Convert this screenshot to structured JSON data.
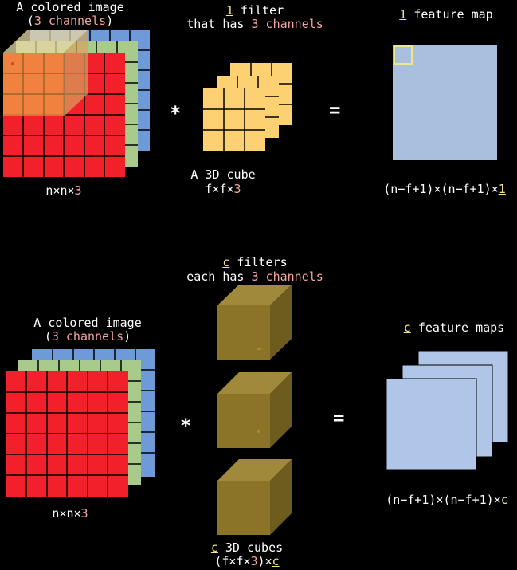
{
  "top": {
    "image_title_1": "A colored image",
    "image_title_2_open": "(",
    "image_title_2_pink": "3 channels",
    "image_title_2_close": ")",
    "filter_num": "1",
    "filter_word": " filter",
    "filter_line2_a": "that has ",
    "filter_line2_pink": "3 channels",
    "map_num": "1",
    "map_word": " feature map",
    "image_dims_a": "n×n×",
    "image_dims_pink": "3",
    "cube_label": "A 3D cube",
    "cube_dims_a": "f×f×",
    "cube_dims_pink": "3",
    "map_dims_a": "(n−f+1)×(n−f+1)×",
    "map_dims_yel": "1",
    "star": "*",
    "equals": "="
  },
  "bottom": {
    "filters_num": "c",
    "filters_word": " filters",
    "filters_line2_a": "each has ",
    "filters_line2_pink": "3 channels",
    "image_title_1": "A colored image",
    "image_title_2_open": "(",
    "image_title_2_pink": "3 channels",
    "image_title_2_close": ")",
    "maps_num": "c",
    "maps_word": " feature maps",
    "image_dims_a": "n×n×",
    "image_dims_pink": "3",
    "cubes_num": "c",
    "cubes_word": " 3D cubes",
    "cubes_dims_a": "(f×f×",
    "cubes_dims_pink": "3",
    "cubes_dims_b": ")×",
    "cubes_dims_yel": "c",
    "map_dims_a": "(n−f+1)×(n−f+1)×",
    "map_dims_yel": "c",
    "star": "*",
    "equals": "="
  },
  "colors": {
    "red": "#f2202a",
    "green": "#a8cb8c",
    "blue": "#6f9ad8",
    "filter_yellow": "#fdd171",
    "feature_map": "#a8bfde",
    "feature_map_light": "#afc6e8",
    "cube_front": "#8b7428",
    "cube_side": "#6e5c1e",
    "cube_top": "#a0893a",
    "pink": "#f4a49c",
    "highlight": "#f2e48a"
  }
}
